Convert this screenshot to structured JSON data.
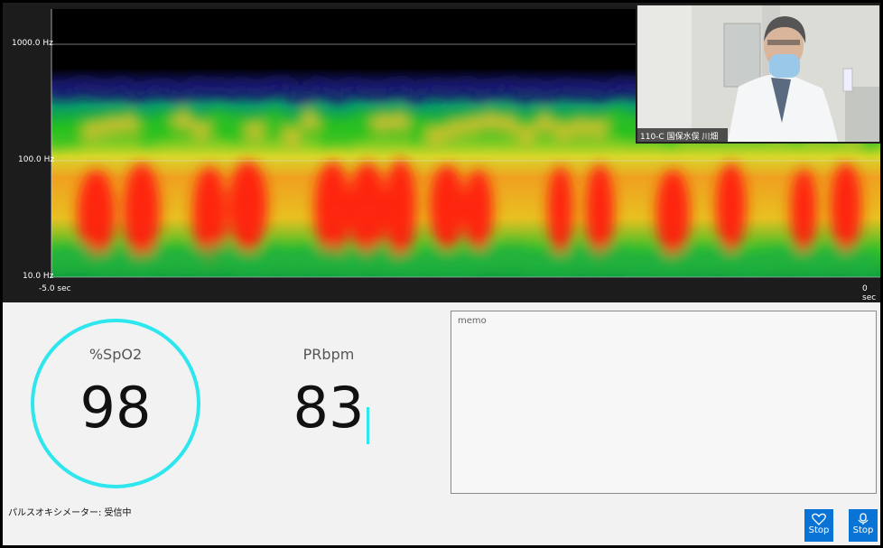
{
  "spectrogram": {
    "y_labels": [
      "1000.0 Hz",
      "100.0 Hz",
      "10.0 Hz"
    ],
    "x_labels": [
      "-5.0 sec",
      "0 sec"
    ]
  },
  "video": {
    "caption": "110-C 国保水俣 川畑"
  },
  "spo2": {
    "label": "%SpO2",
    "value": 98
  },
  "pulse": {
    "label": "PRbpm",
    "value": 83
  },
  "memo": {
    "placeholder": "memo"
  },
  "status": "パルスオキシメーター: 受信中",
  "buttons": [
    {
      "label": "Stop"
    },
    {
      "label": "Stop"
    }
  ]
}
